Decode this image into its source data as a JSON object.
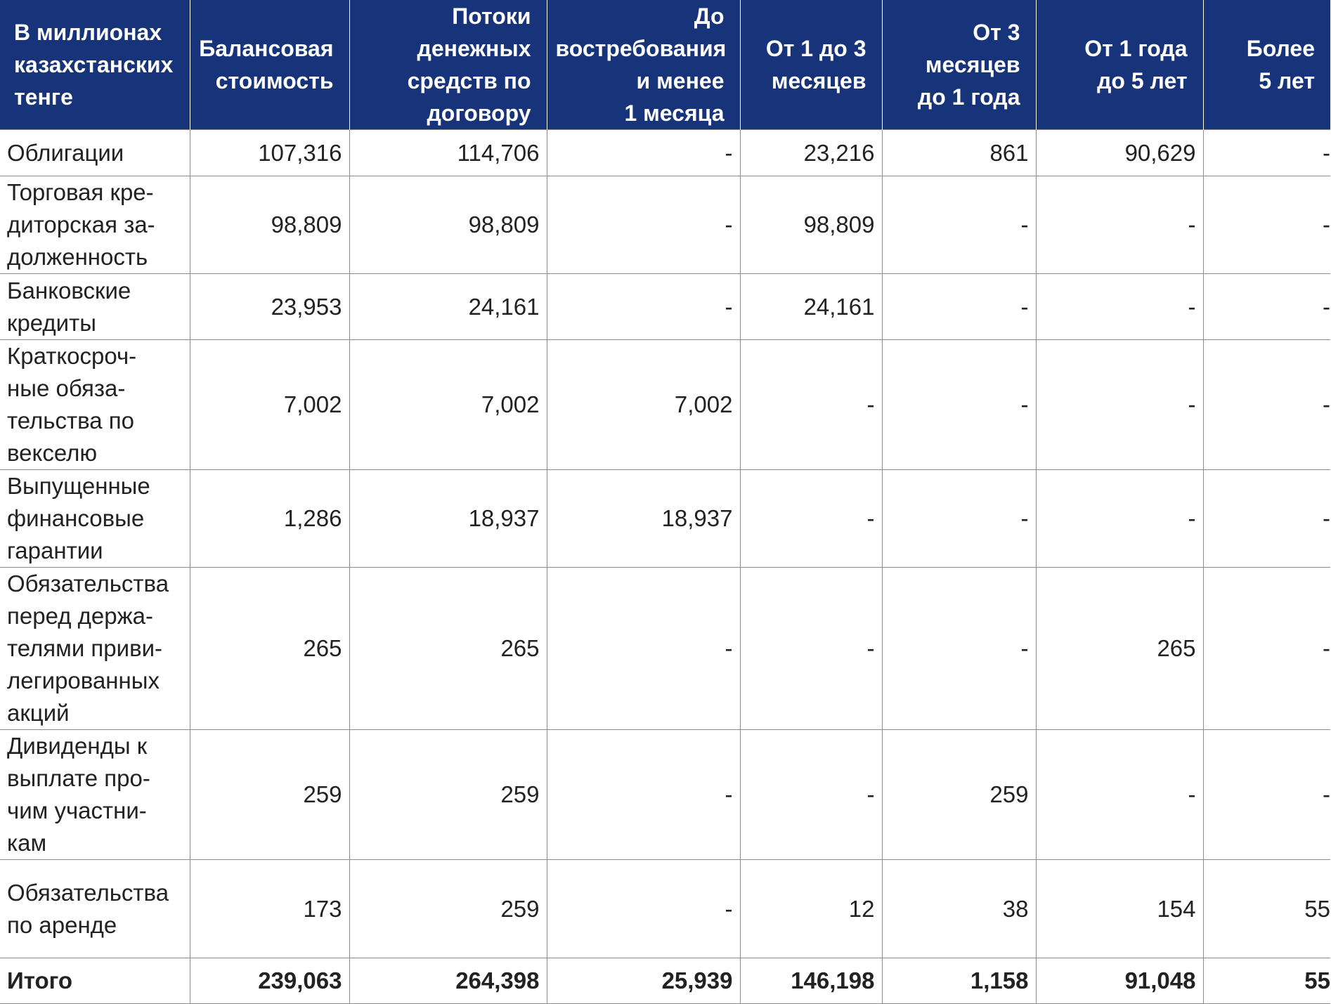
{
  "columns": [
    "В миллионах\nказахстанских\nтенге",
    "Балансовая\nстоимость",
    "Потоки\nденежных\nсредств по\nдоговору",
    "До\nвостребования\nи менее\n1 месяца",
    "От 1 до 3\nмесяцев",
    "От 3\nмесяцев\nдо 1 года",
    "От 1 года\nдо 5 лет",
    "Более\n5 лет"
  ],
  "rows": [
    {
      "label": "Облигации",
      "values": [
        "107,316",
        "114,706",
        "-",
        "23,216",
        "861",
        "90,629",
        "-"
      ]
    },
    {
      "label": "Торговая кре-\nдиторская за-\nдолженность",
      "values": [
        "98,809",
        "98,809",
        "-",
        "98,809",
        "-",
        "-",
        "-"
      ]
    },
    {
      "label": "Банковские\nкредиты",
      "values": [
        "23,953",
        "24,161",
        "-",
        "24,161",
        "-",
        "-",
        "-"
      ]
    },
    {
      "label": "Краткосроч-\nные обяза-\nтельства по\nвекселю",
      "values": [
        "7,002",
        "7,002",
        "7,002",
        "-",
        "-",
        "-",
        "-"
      ]
    },
    {
      "label": "Выпущенные\nфинансовые\nгарантии",
      "values": [
        "1,286",
        "18,937",
        "18,937",
        "-",
        "-",
        "-",
        "-"
      ]
    },
    {
      "label": "Обязательства\nперед держа-\nтелями приви-\nлегированных\nакций",
      "values": [
        "265",
        "265",
        "-",
        "-",
        "-",
        "265",
        "-"
      ]
    },
    {
      "label": "Дивиденды к\nвыплате про-\nчим участни-\nкам",
      "values": [
        "259",
        "259",
        "-",
        "-",
        "259",
        "-",
        "-"
      ]
    },
    {
      "label": "Обязательства\nпо аренде",
      "values": [
        "173",
        "259",
        "-",
        "12",
        "38",
        "154",
        "55"
      ]
    }
  ],
  "total": {
    "label": "Итого",
    "values": [
      "239,063",
      "264,398",
      "25,939",
      "146,198",
      "1,158",
      "91,048",
      "55"
    ]
  },
  "colors": {
    "header_bg": "#17347a",
    "header_text": "#ffffff",
    "grid": "#8c8c8c",
    "text": "#222222"
  }
}
